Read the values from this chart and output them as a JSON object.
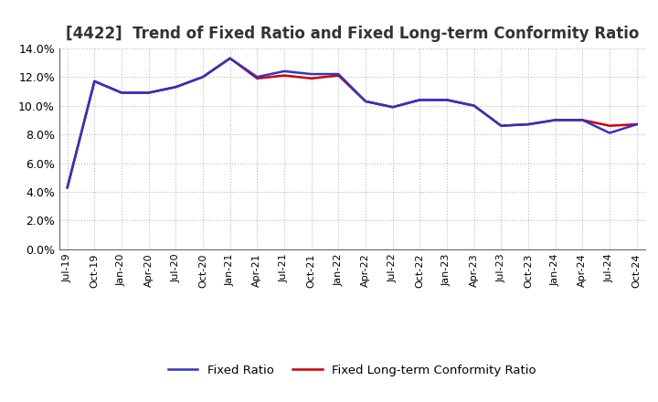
{
  "title": "[4422]  Trend of Fixed Ratio and Fixed Long-term Conformity Ratio",
  "x_labels": [
    "Jul-19",
    "Oct-19",
    "Jan-20",
    "Apr-20",
    "Jul-20",
    "Oct-20",
    "Jan-21",
    "Apr-21",
    "Jul-21",
    "Oct-21",
    "Jan-22",
    "Apr-22",
    "Jul-22",
    "Oct-22",
    "Jan-23",
    "Apr-23",
    "Jul-23",
    "Oct-23",
    "Jan-24",
    "Apr-24",
    "Jul-24",
    "Oct-24"
  ],
  "fixed_ratio": [
    4.3,
    11.7,
    10.9,
    10.9,
    11.3,
    12.0,
    13.3,
    12.0,
    12.4,
    12.2,
    12.2,
    10.3,
    9.9,
    10.4,
    10.4,
    10.0,
    8.6,
    8.7,
    9.0,
    9.0,
    8.1,
    8.7
  ],
  "fixed_lt_ratio": [
    4.3,
    11.7,
    10.9,
    10.9,
    11.3,
    12.0,
    13.3,
    11.9,
    12.1,
    11.9,
    12.1,
    10.3,
    9.9,
    10.4,
    10.4,
    10.0,
    8.6,
    8.7,
    9.0,
    9.0,
    8.6,
    8.7
  ],
  "fixed_ratio_color": "#3232c8",
  "fixed_lt_ratio_color": "#cc0000",
  "ylim": [
    0.0,
    14.0
  ],
  "yticks": [
    0.0,
    2.0,
    4.0,
    6.0,
    8.0,
    10.0,
    12.0,
    14.0
  ],
  "background_color": "#ffffff",
  "plot_bg_color": "#ffffff",
  "grid_color": "#aaaaaa",
  "title_fontsize": 12,
  "legend_fixed_ratio": "Fixed Ratio",
  "legend_fixed_lt_ratio": "Fixed Long-term Conformity Ratio"
}
